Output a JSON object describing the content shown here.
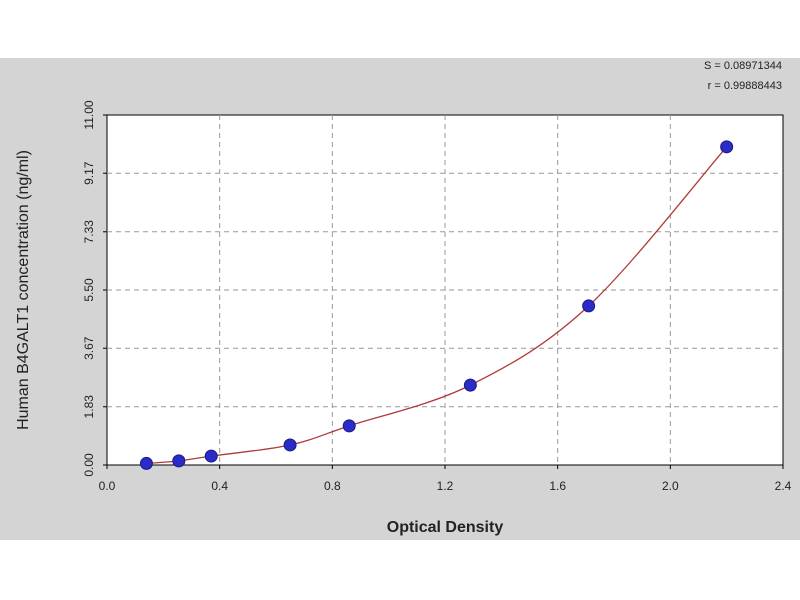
{
  "chart_data": {
    "type": "scatter",
    "annotations": [
      "S = 0.08971344",
      "r = 0.99888443"
    ],
    "xlabel": "Optical Density",
    "ylabel": "Human B4GALT1 concentration (ng/ml)",
    "x": [
      0.14,
      0.255,
      0.37,
      0.65,
      0.86,
      1.29,
      1.71,
      2.2
    ],
    "values": [
      0.05,
      0.13,
      0.28,
      0.63,
      1.23,
      2.51,
      5.0,
      10.0
    ],
    "color": "#2b2bc8",
    "line_color": "#b03a3a",
    "xlim": [
      0,
      2.4
    ],
    "xticks": [
      {
        "value": 0,
        "label": "0.0"
      },
      0.4,
      0.8,
      1.2,
      1.6,
      {
        "value": 2,
        "label": "2.0"
      },
      2.4
    ],
    "ylim": [
      0,
      11
    ],
    "yticks": [
      {
        "value": 0,
        "label": "0.00"
      },
      1.83,
      3.67,
      {
        "value": 5.5,
        "label": "5.50"
      },
      7.33,
      9.17,
      {
        "value": 11,
        "label": "11.00"
      }
    ],
    "grid": true
  }
}
